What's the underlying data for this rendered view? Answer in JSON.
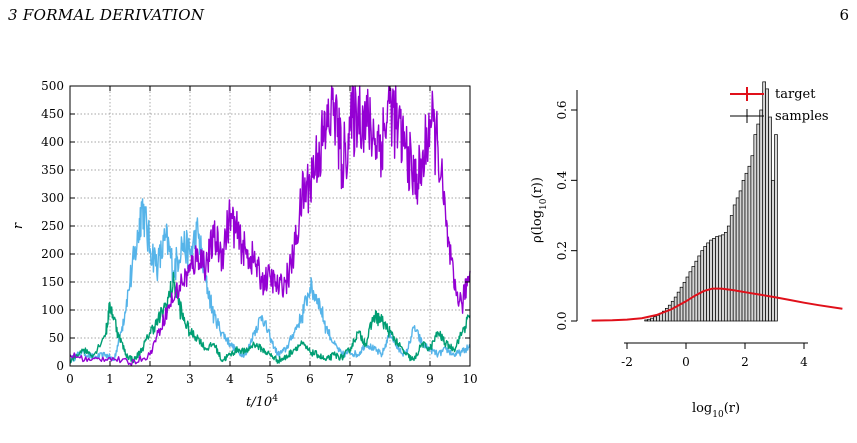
{
  "header": {
    "section": "3   FORMAL DERIVATION",
    "page_number": "6"
  },
  "chart_data": [
    {
      "type": "line",
      "title": "",
      "xlabel": "t/10",
      "xlabel_sup": "4",
      "ylabel": "r",
      "xlim": [
        0,
        10
      ],
      "ylim": [
        0,
        500
      ],
      "xticks": [
        "0",
        "1",
        "2",
        "3",
        "4",
        "5",
        "6",
        "7",
        "8",
        "9",
        "10"
      ],
      "yticks": [
        "0",
        "50",
        "100",
        "150",
        "200",
        "250",
        "300",
        "350",
        "400",
        "450",
        "500"
      ],
      "grid": true,
      "legend": "none",
      "series": [
        {
          "color": "#56b4e9",
          "x": [
            0,
            0.3,
            0.6,
            0.9,
            1.1,
            1.3,
            1.5,
            1.7,
            1.8,
            2.0,
            2.2,
            2.4,
            2.6,
            2.8,
            3.0,
            3.2,
            3.4,
            3.6,
            3.8,
            4.0,
            4.2,
            4.4,
            4.6,
            4.8,
            5.0,
            5.2,
            5.4,
            5.6,
            5.8,
            6.0,
            6.2,
            6.4,
            6.6,
            6.8,
            7.0,
            7.2,
            7.4,
            7.6,
            7.8,
            8.0,
            8.2,
            8.4,
            8.6,
            8.8,
            9.0,
            9.2,
            9.4,
            9.6,
            9.8,
            10.0
          ],
          "values": [
            10,
            25,
            15,
            20,
            10,
            70,
            150,
            230,
            290,
            210,
            180,
            230,
            170,
            220,
            200,
            240,
            150,
            90,
            60,
            40,
            25,
            20,
            60,
            90,
            50,
            20,
            30,
            60,
            90,
            140,
            120,
            70,
            40,
            20,
            25,
            20,
            40,
            30,
            20,
            60,
            30,
            20,
            70,
            40,
            30,
            20,
            30,
            20,
            25,
            35
          ]
        },
        {
          "color": "#009e73",
          "x": [
            0,
            0.3,
            0.6,
            0.9,
            1.0,
            1.2,
            1.4,
            1.6,
            1.8,
            2.0,
            2.2,
            2.4,
            2.6,
            2.8,
            3.0,
            3.2,
            3.4,
            3.6,
            3.8,
            4.0,
            4.2,
            4.4,
            4.6,
            4.8,
            5.0,
            5.2,
            5.4,
            5.6,
            5.8,
            6.0,
            6.2,
            6.4,
            6.6,
            6.8,
            7.0,
            7.2,
            7.4,
            7.6,
            7.8,
            8.0,
            8.2,
            8.4,
            8.6,
            8.8,
            9.0,
            9.2,
            9.4,
            9.6,
            9.8,
            10.0
          ],
          "values": [
            5,
            30,
            20,
            60,
            110,
            60,
            20,
            10,
            30,
            60,
            80,
            110,
            150,
            90,
            60,
            50,
            30,
            40,
            10,
            20,
            30,
            25,
            40,
            30,
            20,
            10,
            15,
            30,
            40,
            25,
            20,
            10,
            20,
            15,
            30,
            60,
            40,
            90,
            80,
            60,
            40,
            20,
            10,
            40,
            30,
            60,
            40,
            30,
            60,
            90
          ]
        },
        {
          "color": "#9400d3",
          "x": [
            0,
            0.5,
            1.0,
            1.5,
            2.0,
            2.2,
            2.5,
            2.8,
            3.0,
            3.2,
            3.4,
            3.6,
            3.8,
            4.0,
            4.2,
            4.4,
            4.6,
            4.8,
            5.0,
            5.2,
            5.4,
            5.6,
            5.8,
            6.0,
            6.2,
            6.4,
            6.6,
            6.8,
            7.0,
            7.2,
            7.4,
            7.6,
            7.8,
            8.0,
            8.2,
            8.4,
            8.6,
            8.8,
            9.0,
            9.2,
            9.4,
            9.6,
            9.8,
            10.0
          ],
          "values": [
            20,
            10,
            15,
            5,
            20,
            60,
            110,
            150,
            170,
            200,
            180,
            230,
            200,
            270,
            230,
            200,
            190,
            150,
            160,
            140,
            150,
            200,
            300,
            330,
            380,
            420,
            470,
            360,
            420,
            460,
            440,
            410,
            400,
            470,
            420,
            390,
            330,
            350,
            440,
            390,
            250,
            140,
            110,
            170
          ]
        }
      ]
    },
    {
      "type": "bar",
      "title": "",
      "xlabel": "log",
      "xlabel_sub": "10",
      "xlabel_suffix": "(r)",
      "ylabel": "ρ(log",
      "ylabel_sub": "10",
      "ylabel_suffix": "(r))",
      "xlim": [
        -3.2,
        5.3
      ],
      "ylim": [
        0,
        0.7
      ],
      "xticks": [
        "-2",
        "0",
        "2",
        "4"
      ],
      "yticks": [
        "0.0",
        "0.2",
        "0.4",
        "0.6"
      ],
      "grid": false,
      "legend": "top-right",
      "legend_entries": [
        "target",
        "samples"
      ],
      "target_color": "#e0101a",
      "bin_width": 0.1,
      "bin_start": -1.4,
      "values": [
        0.003,
        0.005,
        0.008,
        0.012,
        0.016,
        0.022,
        0.028,
        0.036,
        0.045,
        0.056,
        0.068,
        0.082,
        0.096,
        0.11,
        0.125,
        0.14,
        0.155,
        0.17,
        0.185,
        0.2,
        0.212,
        0.222,
        0.23,
        0.235,
        0.24,
        0.242,
        0.245,
        0.252,
        0.27,
        0.3,
        0.33,
        0.35,
        0.37,
        0.4,
        0.42,
        0.44,
        0.47,
        0.53,
        0.56,
        0.6,
        0.68,
        0.66,
        0.58,
        0.4,
        0.53
      ],
      "target_x": [
        -3.2,
        -2.5,
        -2.0,
        -1.5,
        -1.0,
        -0.5,
        0.0,
        0.3,
        0.6,
        0.9,
        1.2,
        1.6,
        2.0,
        2.5,
        3.0,
        3.5,
        4.0,
        4.5,
        5.3
      ],
      "target_values": [
        0.001,
        0.002,
        0.004,
        0.008,
        0.017,
        0.033,
        0.056,
        0.072,
        0.085,
        0.092,
        0.092,
        0.088,
        0.082,
        0.075,
        0.068,
        0.06,
        0.052,
        0.045,
        0.035
      ]
    }
  ]
}
